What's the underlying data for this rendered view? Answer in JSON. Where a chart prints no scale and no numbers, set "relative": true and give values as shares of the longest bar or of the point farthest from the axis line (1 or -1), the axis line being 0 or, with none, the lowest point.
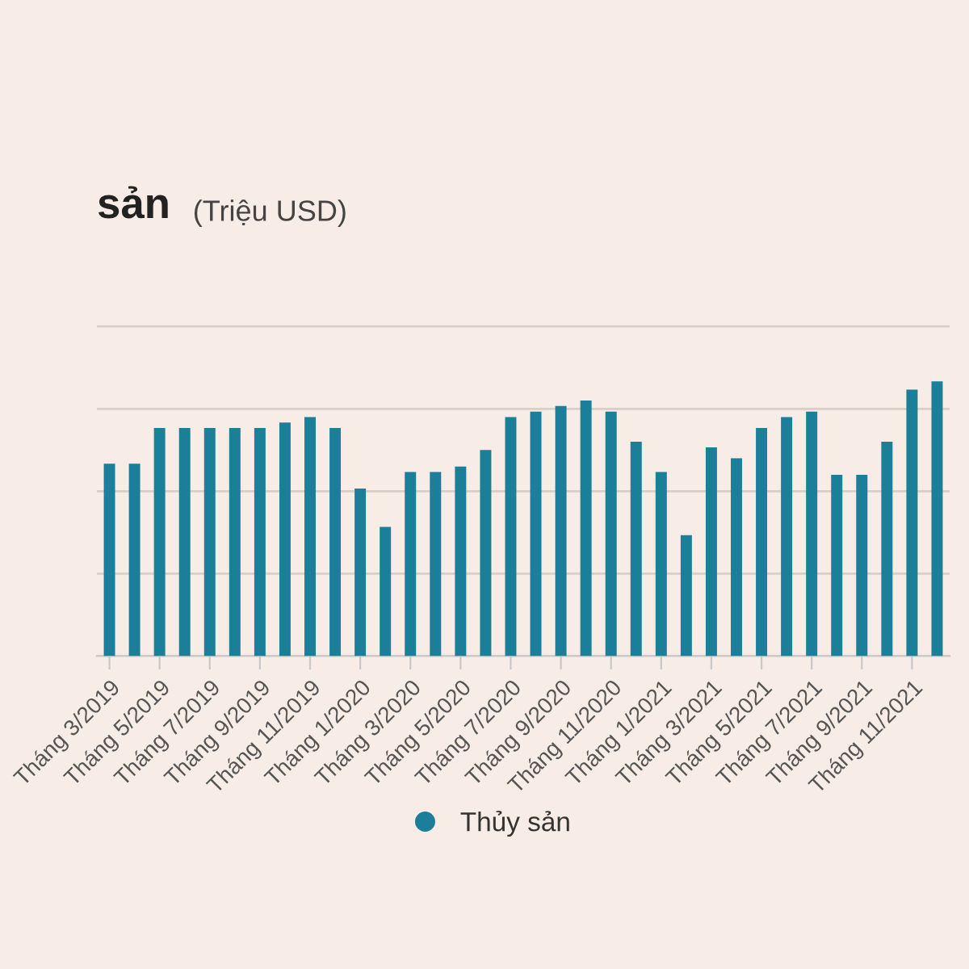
{
  "chart_data": {
    "type": "bar",
    "title": "sản",
    "subtitle": "(Triệu USD)",
    "categories": [
      "Tháng 3/2019",
      null,
      "Tháng 5/2019",
      null,
      "Tháng 7/2019",
      null,
      "Tháng 9/2019",
      null,
      "Tháng 11/2019",
      null,
      "Tháng 1/2020",
      null,
      "Tháng 3/2020",
      null,
      "Tháng 5/2020",
      null,
      "Tháng 7/2020",
      null,
      "Tháng 9/2020",
      null,
      "Tháng 11/2020",
      null,
      "Tháng 1/2021",
      null,
      "Tháng 3/2021",
      null,
      "Tháng 5/2021",
      null,
      "Tháng 7/2021",
      null,
      "Tháng 9/2021",
      null,
      "Tháng 11/2021",
      null
    ],
    "series": [
      {
        "name": "Thủy sản",
        "color": "#1b7f9a",
        "values": [
          0.7,
          0.7,
          0.83,
          0.83,
          0.83,
          0.83,
          0.83,
          0.85,
          0.87,
          0.83,
          0.61,
          0.47,
          0.67,
          0.67,
          0.69,
          0.75,
          0.87,
          0.89,
          0.91,
          0.93,
          0.89,
          0.78,
          0.67,
          0.44,
          0.76,
          0.72,
          0.83,
          0.87,
          0.89,
          0.66,
          0.66,
          0.78,
          0.97,
          1
        ]
      }
    ],
    "relative": true,
    "grid": "y",
    "legend": "bottom",
    "tick_labels": "x"
  }
}
